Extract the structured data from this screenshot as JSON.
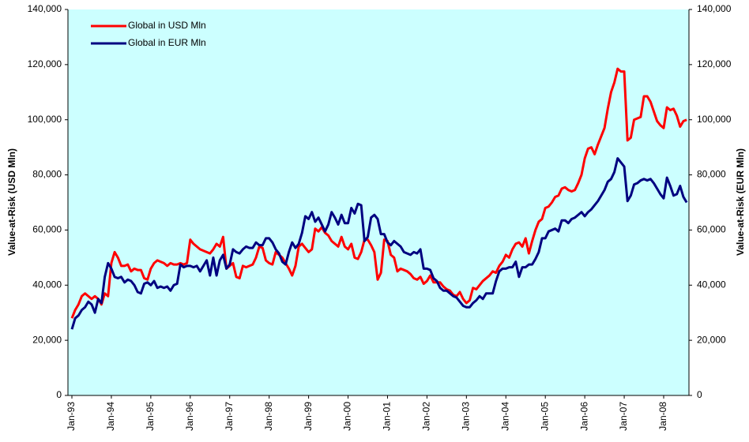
{
  "chart_data": {
    "type": "line",
    "y_label": "Value-at-Risk (USD Mln)",
    "y2_label": "Value-at-Risk (EUR Mln)",
    "legend": "upper left",
    "categories": [
      "Jan-93",
      null,
      null,
      null,
      null,
      null,
      null,
      null,
      null,
      null,
      null,
      null,
      "Jan-94",
      null,
      null,
      null,
      null,
      null,
      null,
      null,
      null,
      null,
      null,
      null,
      "Jan-95",
      null,
      null,
      null,
      null,
      null,
      null,
      null,
      null,
      null,
      null,
      null,
      "Jan-96",
      null,
      null,
      null,
      null,
      null,
      null,
      null,
      null,
      null,
      null,
      null,
      "Jan-97",
      null,
      null,
      null,
      null,
      null,
      null,
      null,
      null,
      null,
      null,
      null,
      "Jan-98",
      null,
      null,
      null,
      null,
      null,
      null,
      null,
      null,
      null,
      null,
      null,
      "Jan-99",
      null,
      null,
      null,
      null,
      null,
      null,
      null,
      null,
      null,
      null,
      null,
      "Jan-00",
      null,
      null,
      null,
      null,
      null,
      null,
      null,
      null,
      null,
      null,
      null,
      "Jan-01",
      null,
      null,
      null,
      null,
      null,
      null,
      null,
      null,
      null,
      null,
      null,
      "Jan-02",
      null,
      null,
      null,
      null,
      null,
      null,
      null,
      null,
      null,
      null,
      null,
      "Jan-03",
      null,
      null,
      null,
      null,
      null,
      null,
      null,
      null,
      null,
      null,
      null,
      "Jan-04",
      null,
      null,
      null,
      null,
      null,
      null,
      null,
      null,
      null,
      null,
      null,
      "Jan-05",
      null,
      null,
      null,
      null,
      null,
      null,
      null,
      null,
      null,
      null,
      null,
      "Jan-06",
      null,
      null,
      null,
      null,
      null,
      null,
      null,
      null,
      null,
      null,
      null,
      "Jan-07",
      null,
      null,
      null,
      null,
      null,
      null,
      null,
      null,
      null,
      null,
      null,
      "Jan-08",
      null,
      null,
      null,
      null,
      null,
      null,
      null
    ],
    "series": [
      {
        "name": "Global in USD Mln",
        "color": "#ff0000",
        "values": [
          28000,
          31000,
          33000,
          36000,
          37000,
          36000,
          35000,
          36000,
          35000,
          33000,
          37000,
          36000,
          48000,
          52000,
          50000,
          47000,
          47000,
          47500,
          45000,
          46000,
          45500,
          45500,
          42500,
          42000,
          46000,
          48000,
          49000,
          48500,
          48000,
          47000,
          48000,
          47500,
          47500,
          48000,
          47500,
          48000,
          56500,
          55000,
          54000,
          53000,
          52500,
          52000,
          51500,
          53000,
          55000,
          54000,
          57500,
          46000,
          47000,
          48000,
          43000,
          42500,
          47000,
          46500,
          47000,
          47500,
          50000,
          54000,
          53500,
          49000,
          48000,
          47500,
          52000,
          51000,
          50000,
          48000,
          46000,
          43500,
          47000,
          54000,
          55000,
          53500,
          52000,
          53000,
          60500,
          59500,
          61000,
          59000,
          58000,
          56000,
          55000,
          54000,
          57500,
          54000,
          53000,
          55000,
          50000,
          49500,
          52000,
          56500,
          56500,
          54500,
          52000,
          42000,
          44500,
          56500,
          56000,
          51000,
          50000,
          45000,
          46000,
          45500,
          45000,
          44000,
          42500,
          42000,
          43000,
          40500,
          41500,
          43500,
          41000,
          41000,
          41000,
          39500,
          38500,
          38000,
          36500,
          36000,
          37500,
          35000,
          33500,
          34500,
          39000,
          38500,
          40000,
          41500,
          42500,
          43500,
          45000,
          44500,
          47000,
          48500,
          51000,
          50000,
          53000,
          55000,
          55500,
          54000,
          57000,
          51500,
          56000,
          60000,
          63000,
          64000,
          68000,
          68500,
          70000,
          72000,
          72500,
          75000,
          75500,
          74500,
          74000,
          74500,
          77000,
          80000,
          86000,
          89500,
          90000,
          87500,
          91000,
          94000,
          97000,
          104000,
          110000,
          113500,
          118500,
          117500,
          117500,
          92500,
          93500,
          100000,
          100500,
          101000,
          108500,
          108500,
          106500,
          103000,
          99500,
          98000,
          97000,
          104500,
          103500,
          104000,
          101500,
          97500,
          99500,
          100000
        ]
      },
      {
        "name": "Global in EUR Mln",
        "color": "#000080",
        "axis": "y2",
        "values": [
          24000,
          28000,
          29000,
          31000,
          32000,
          34000,
          33000,
          30000,
          35000,
          33500,
          43000,
          48000,
          46000,
          43000,
          42500,
          43000,
          41000,
          42000,
          41500,
          40000,
          37500,
          37000,
          40500,
          41000,
          40000,
          41500,
          39000,
          39500,
          39000,
          39500,
          38000,
          40000,
          40500,
          47500,
          46500,
          47000,
          47000,
          46500,
          47000,
          45000,
          47000,
          49000,
          43500,
          50000,
          43500,
          49000,
          51000,
          46000,
          47500,
          53000,
          52000,
          51500,
          53000,
          54000,
          53500,
          53500,
          55500,
          54500,
          54500,
          57000,
          57000,
          55500,
          53000,
          51500,
          48500,
          47500,
          52000,
          55500,
          53500,
          55000,
          59000,
          65000,
          64000,
          66500,
          63000,
          64500,
          62000,
          59500,
          62000,
          66500,
          64500,
          62000,
          65500,
          62500,
          62500,
          68000,
          66000,
          69500,
          69000,
          56000,
          57500,
          64500,
          65500,
          64000,
          58500,
          58500,
          55500,
          54500,
          56000,
          55000,
          54000,
          52000,
          51500,
          51000,
          52000,
          51500,
          53000,
          46000,
          46000,
          45500,
          42500,
          41500,
          39000,
          38000,
          38000,
          37000,
          36000,
          35500,
          34000,
          32500,
          32000,
          32000,
          33500,
          34500,
          36000,
          35000,
          37000,
          37000,
          37000,
          41500,
          45000,
          46000,
          46000,
          46500,
          46500,
          48500,
          43000,
          46500,
          46500,
          47500,
          47500,
          49500,
          52000,
          57000,
          57000,
          59500,
          60000,
          60500,
          59500,
          63500,
          63500,
          62500,
          64000,
          64500,
          65500,
          66500,
          65000,
          66500,
          67500,
          69000,
          70500,
          72500,
          74500,
          77500,
          78500,
          81000,
          86000,
          84500,
          83000,
          70500,
          72500,
          76500,
          77000,
          78000,
          78500,
          78000,
          78500,
          77000,
          75000,
          73000,
          71500,
          79000,
          76000,
          72500,
          73000,
          76000,
          72000,
          70000
        ]
      }
    ],
    "ylim": [
      0,
      140000
    ],
    "yticks": [
      0,
      {
        "value": 20000,
        "label": "20,000"
      },
      {
        "value": 40000,
        "label": "40,000"
      },
      {
        "value": 60000,
        "label": "60,000"
      },
      {
        "value": 80000,
        "label": "80,000"
      },
      {
        "value": 100000,
        "label": "100,000"
      },
      {
        "value": 120000,
        "label": "120,000"
      },
      {
        "value": 140000,
        "label": "140,000"
      }
    ],
    "y2lim": [
      0,
      140000
    ],
    "y2ticks": [
      0,
      {
        "value": 20000,
        "label": "20,000"
      },
      {
        "value": 40000,
        "label": "40,000"
      },
      {
        "value": 60000,
        "label": "60,000"
      },
      {
        "value": 80000,
        "label": "80,000"
      },
      {
        "value": 100000,
        "label": "100,000"
      },
      {
        "value": 120000,
        "label": "120,000"
      },
      {
        "value": 140000,
        "label": "140,000"
      }
    ]
  }
}
